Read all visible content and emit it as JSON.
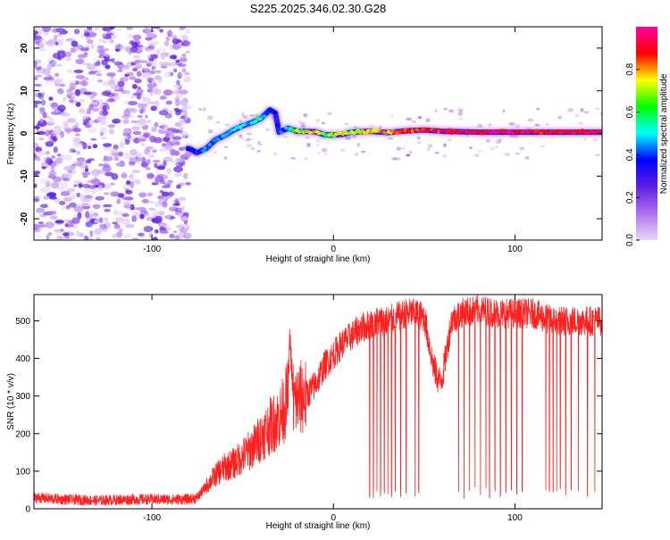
{
  "title": "S225.2025.346.02.30.G28",
  "chart_data": [
    {
      "type": "heatmap",
      "title": "S225.2025.346.02.30.G28",
      "xlabel": "Height of straight line (km)",
      "ylabel": "Frequency (Hz)",
      "xlim": [
        -165,
        148
      ],
      "ylim": [
        -25,
        25
      ],
      "xticks": [
        -100,
        0,
        100
      ],
      "xtick_labels": [
        "-100",
        "0",
        "100"
      ],
      "yticks": [
        -20,
        -10,
        0,
        10,
        20
      ],
      "ytick_labels": [
        "-20",
        "-10",
        "0",
        "10",
        "20"
      ],
      "colorbar": {
        "label": "Normalized spectral amplitude",
        "range": [
          0,
          1
        ],
        "ticks": [
          0.0,
          0.2,
          0.4,
          0.6,
          0.8
        ],
        "tick_labels": [
          "0.0",
          "0.2",
          "0.4",
          "0.6",
          "0.8"
        ],
        "colors": [
          "#e8d8f8",
          "#b070f0",
          "#6020e0",
          "#0000ff",
          "#00ffff",
          "#00ff00",
          "#ffff00",
          "#ff0000",
          "#ff00a0"
        ]
      },
      "noise_region": {
        "x": [
          -165,
          -80
        ],
        "y": [
          -25,
          25
        ]
      },
      "ridge": {
        "x": [
          -80,
          -75,
          -70,
          -65,
          -60,
          -55,
          -50,
          -45,
          -40,
          -35,
          -32,
          -30,
          -25,
          -20,
          -10,
          -5,
          0,
          5,
          10,
          20,
          30,
          40,
          50,
          60,
          70,
          80,
          100,
          120,
          148
        ],
        "y": [
          -3.5,
          -4.5,
          -3.5,
          -1.5,
          -0.5,
          0.8,
          1.8,
          2.5,
          3.5,
          5.5,
          4.8,
          0.3,
          1.2,
          0.5,
          0.4,
          -0.3,
          -0.4,
          -0.2,
          0.3,
          0.5,
          0.2,
          0.6,
          0.8,
          0.5,
          0.4,
          0.3,
          0.3,
          0.3,
          0.3
        ],
        "amplitude": [
          0.35,
          0.4,
          0.42,
          0.45,
          0.45,
          0.48,
          0.5,
          0.5,
          0.55,
          0.4,
          0.3,
          0.38,
          0.5,
          0.7,
          0.75,
          0.65,
          0.7,
          0.75,
          0.7,
          0.78,
          0.8,
          0.82,
          0.85,
          0.9,
          0.92,
          0.95,
          0.95,
          0.9,
          0.95
        ]
      }
    },
    {
      "type": "line",
      "xlabel": "Height of straight line (km)",
      "ylabel": "SNR (10 * v/v)",
      "xlim": [
        -165,
        148
      ],
      "ylim": [
        0,
        570
      ],
      "xticks": [
        -100,
        0,
        100
      ],
      "xtick_labels": [
        "-100",
        "0",
        "100"
      ],
      "yticks": [
        0,
        100,
        200,
        300,
        400,
        500
      ],
      "ytick_labels": [
        "0",
        "100",
        "200",
        "300",
        "400",
        "500"
      ],
      "color": "#ff2020",
      "series": [
        {
          "name": "SNR",
          "x": [
            -165,
            -150,
            -130,
            -110,
            -90,
            -80,
            -75,
            -70,
            -65,
            -60,
            -55,
            -50,
            -45,
            -40,
            -35,
            -30,
            -27,
            -25,
            -24,
            -22,
            -20,
            -15,
            -10,
            -5,
            0,
            5,
            10,
            15,
            20,
            25,
            30,
            35,
            40,
            45,
            50,
            55,
            58,
            60,
            65,
            70,
            80,
            90,
            100,
            110,
            120,
            130,
            140,
            148
          ],
          "y": [
            30,
            25,
            22,
            25,
            25,
            25,
            30,
            60,
            90,
            110,
            120,
            140,
            160,
            190,
            220,
            240,
            270,
            300,
            460,
            280,
            290,
            300,
            330,
            380,
            410,
            440,
            460,
            480,
            490,
            500,
            500,
            510,
            520,
            520,
            510,
            380,
            340,
            350,
            500,
            520,
            530,
            520,
            520,
            520,
            500,
            500,
            500,
            500
          ]
        }
      ],
      "dropouts": [
        20,
        22,
        24,
        26,
        28,
        30,
        32,
        34,
        37,
        40,
        45,
        47,
        69,
        72,
        75,
        78,
        81,
        84,
        86,
        89,
        92,
        95,
        98,
        101,
        104,
        117,
        119,
        121,
        123,
        125,
        128,
        131,
        135,
        140,
        144
      ]
    }
  ],
  "icons": {
    "colorbar": "colorbar-gradient"
  }
}
